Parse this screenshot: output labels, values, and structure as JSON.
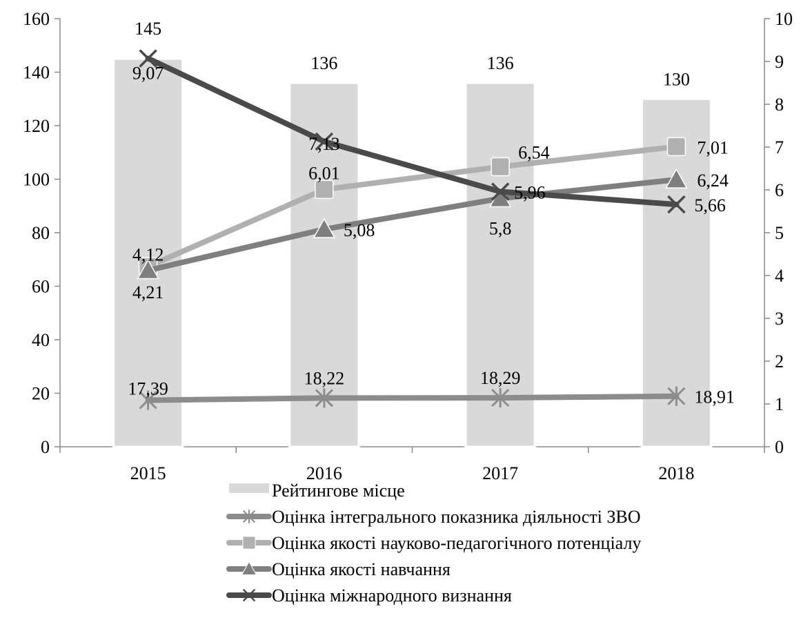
{
  "chart_data": {
    "type": "bar",
    "categories": [
      "2015",
      "2016",
      "2017",
      "2018"
    ],
    "bar_series": {
      "name": "Рейтингове місце",
      "values": [
        145,
        136,
        136,
        130
      ],
      "labels": [
        "145",
        "136",
        "136",
        "130"
      ],
      "axis": "left",
      "color": "#d9d9d9"
    },
    "line_series": [
      {
        "name": "Оцінка інтегрального показника діяльності ЗВО",
        "values": [
          17.39,
          18.22,
          18.29,
          18.91
        ],
        "labels": [
          "17,39",
          "18,22",
          "18,29",
          "18,91"
        ],
        "axis": "left",
        "marker": "asterisk",
        "color": "#8c8c8c"
      },
      {
        "name": "Оцінка якості науково-педагогічного потенціалу",
        "values": [
          4.21,
          6.01,
          6.54,
          7.01
        ],
        "labels": [
          "4,21",
          "6,01",
          "6,54",
          "7,01"
        ],
        "axis": "right",
        "marker": "square",
        "color": "#b0b0b0"
      },
      {
        "name": "Оцінка якості навчання",
        "values": [
          4.12,
          5.08,
          5.8,
          6.24
        ],
        "labels": [
          "4,12",
          "5,08",
          "5,8",
          "6,24"
        ],
        "axis": "right",
        "marker": "triangle",
        "color": "#7f7f7f"
      },
      {
        "name": "Оцінка міжнародного визнання",
        "values": [
          9.07,
          7.13,
          5.96,
          5.66
        ],
        "labels": [
          "9,07",
          "7,13",
          "5,96",
          "5,66"
        ],
        "axis": "right",
        "marker": "x",
        "color": "#4a4a4a"
      }
    ],
    "y_left": {
      "min": 0,
      "max": 160,
      "ticks": [
        "0",
        "20",
        "40",
        "60",
        "80",
        "100",
        "120",
        "140",
        "160"
      ]
    },
    "y_right": {
      "min": 0,
      "max": 10,
      "ticks": [
        "0",
        "1",
        "2",
        "3",
        "4",
        "5",
        "6",
        "7",
        "8",
        "9",
        "10"
      ]
    },
    "title": "",
    "xlabel": "",
    "ylabel": "",
    "grid": false,
    "legend_position": "bottom"
  }
}
